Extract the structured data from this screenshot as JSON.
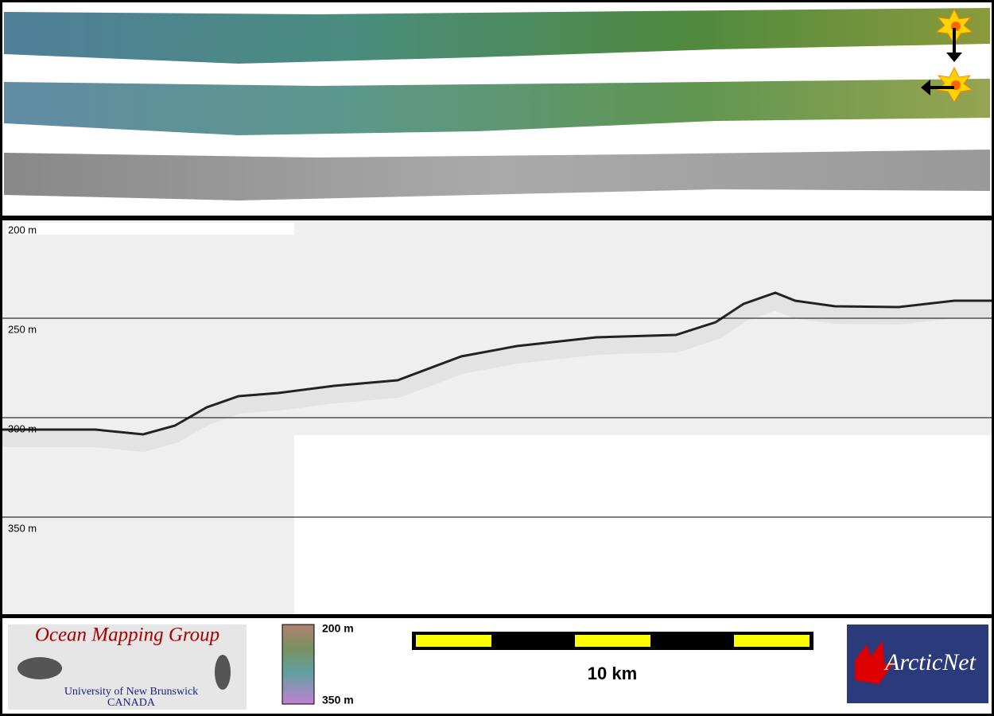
{
  "profile": {
    "depth_labels": [
      "200 m",
      "250 m",
      "300 m",
      "350 m"
    ]
  },
  "legend": {
    "colorbar_top": "200 m",
    "colorbar_bottom": "350 m",
    "scale": "10 km"
  },
  "logos": {
    "omg_title": "Ocean Mapping Group",
    "omg_university": "University of New Brunswick",
    "omg_country": "CANADA",
    "arcticnet": "ArcticNet"
  }
}
